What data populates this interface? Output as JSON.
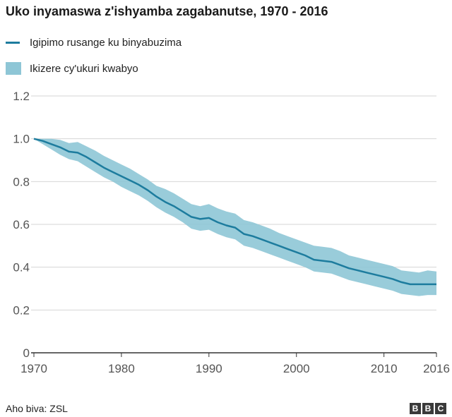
{
  "title": "Uko inyamaswa z'ishyamba zagabanutse, 1970 - 2016",
  "legend": {
    "line_label": "Igipimo rusange ku binyabuzima",
    "band_label": "Ikizere cy'ukuri kwabyo"
  },
  "footer": {
    "source": "Aho biva: ZSL",
    "logo": [
      "B",
      "B",
      "C"
    ]
  },
  "colors": {
    "line": "#1d7c9e",
    "band": "#8ec6d6",
    "grid": "#d6d6d6",
    "axis": "#333333"
  },
  "chart_data": {
    "type": "line",
    "title": "Uko inyamaswa z'ishyamba zagabanutse, 1970 - 2016",
    "xlabel": "",
    "ylabel": "",
    "xlim": [
      1970,
      2016
    ],
    "ylim": [
      0,
      1.2
    ],
    "x_ticks": [
      1970,
      1980,
      1990,
      2000,
      2010,
      2016
    ],
    "x_tick_labels": [
      "1970",
      "1980",
      "1990",
      "2000",
      "2010",
      "2016"
    ],
    "y_ticks": [
      0,
      0.2,
      0.4,
      0.6,
      0.8,
      1.0,
      1.2
    ],
    "y_tick_labels": [
      "0",
      "0.2",
      "0.4",
      "0.6",
      "0.8",
      "1.0",
      "1.2"
    ],
    "grid": true,
    "legend_position": "top-left",
    "x": [
      1970,
      1971,
      1972,
      1973,
      1974,
      1975,
      1976,
      1977,
      1978,
      1979,
      1980,
      1981,
      1982,
      1983,
      1984,
      1985,
      1986,
      1987,
      1988,
      1989,
      1990,
      1991,
      1992,
      1993,
      1994,
      1995,
      1996,
      1997,
      1998,
      1999,
      2000,
      2001,
      2002,
      2003,
      2004,
      2005,
      2006,
      2007,
      2008,
      2009,
      2010,
      2011,
      2012,
      2013,
      2014,
      2015,
      2016
    ],
    "series": [
      {
        "name": "Igipimo rusange ku binyabuzima",
        "values": [
          1.0,
          0.99,
          0.975,
          0.96,
          0.94,
          0.935,
          0.915,
          0.89,
          0.865,
          0.845,
          0.825,
          0.805,
          0.785,
          0.76,
          0.73,
          0.705,
          0.685,
          0.66,
          0.635,
          0.625,
          0.63,
          0.61,
          0.595,
          0.585,
          0.555,
          0.545,
          0.53,
          0.515,
          0.5,
          0.485,
          0.47,
          0.455,
          0.435,
          0.43,
          0.425,
          0.41,
          0.395,
          0.385,
          0.375,
          0.365,
          0.355,
          0.345,
          0.33,
          0.32,
          0.32,
          0.32,
          0.32
        ]
      },
      {
        "name": "Ikizere cy'ukuri kwabyo (hejuru)",
        "values": [
          1.0,
          1.0,
          1.0,
          0.995,
          0.98,
          0.985,
          0.965,
          0.945,
          0.92,
          0.9,
          0.88,
          0.86,
          0.835,
          0.81,
          0.78,
          0.765,
          0.745,
          0.72,
          0.695,
          0.685,
          0.695,
          0.675,
          0.66,
          0.65,
          0.62,
          0.61,
          0.595,
          0.58,
          0.56,
          0.545,
          0.53,
          0.515,
          0.5,
          0.495,
          0.49,
          0.475,
          0.455,
          0.445,
          0.435,
          0.425,
          0.415,
          0.405,
          0.385,
          0.38,
          0.375,
          0.385,
          0.38
        ]
      },
      {
        "name": "Ikizere cy'ukuri kwabyo (hasi)",
        "values": [
          1.0,
          0.975,
          0.95,
          0.925,
          0.905,
          0.895,
          0.87,
          0.845,
          0.82,
          0.8,
          0.775,
          0.755,
          0.735,
          0.71,
          0.68,
          0.655,
          0.635,
          0.61,
          0.58,
          0.57,
          0.575,
          0.555,
          0.54,
          0.53,
          0.5,
          0.49,
          0.475,
          0.46,
          0.445,
          0.43,
          0.415,
          0.4,
          0.38,
          0.375,
          0.37,
          0.355,
          0.34,
          0.33,
          0.32,
          0.31,
          0.3,
          0.29,
          0.275,
          0.27,
          0.265,
          0.27,
          0.27
        ]
      }
    ]
  }
}
